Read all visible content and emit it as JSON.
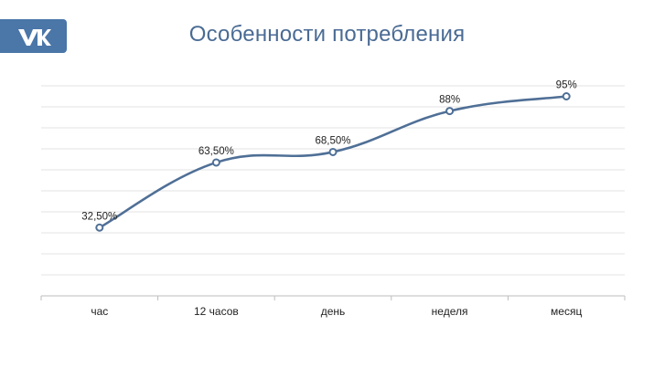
{
  "logo": {
    "text": "vk",
    "color": "#4a76a8"
  },
  "chart_data": {
    "type": "line",
    "title": "Особенности потребления",
    "xlabel": "",
    "ylabel": "",
    "categories": [
      "час",
      "12 часов",
      "день",
      "неделя",
      "месяц"
    ],
    "values": [
      32.5,
      63.5,
      68.5,
      88,
      95
    ],
    "data_labels": [
      "32,50%",
      "63,50%",
      "68,50%",
      "88%",
      "95%"
    ],
    "ylim": [
      0,
      100
    ],
    "grid": true,
    "legend": "none",
    "colors": {
      "line": "#4f6f96",
      "grid": "#e3e3e3",
      "axis": "#bdbdbd",
      "title": "#4a6b94",
      "text": "#222222"
    }
  }
}
